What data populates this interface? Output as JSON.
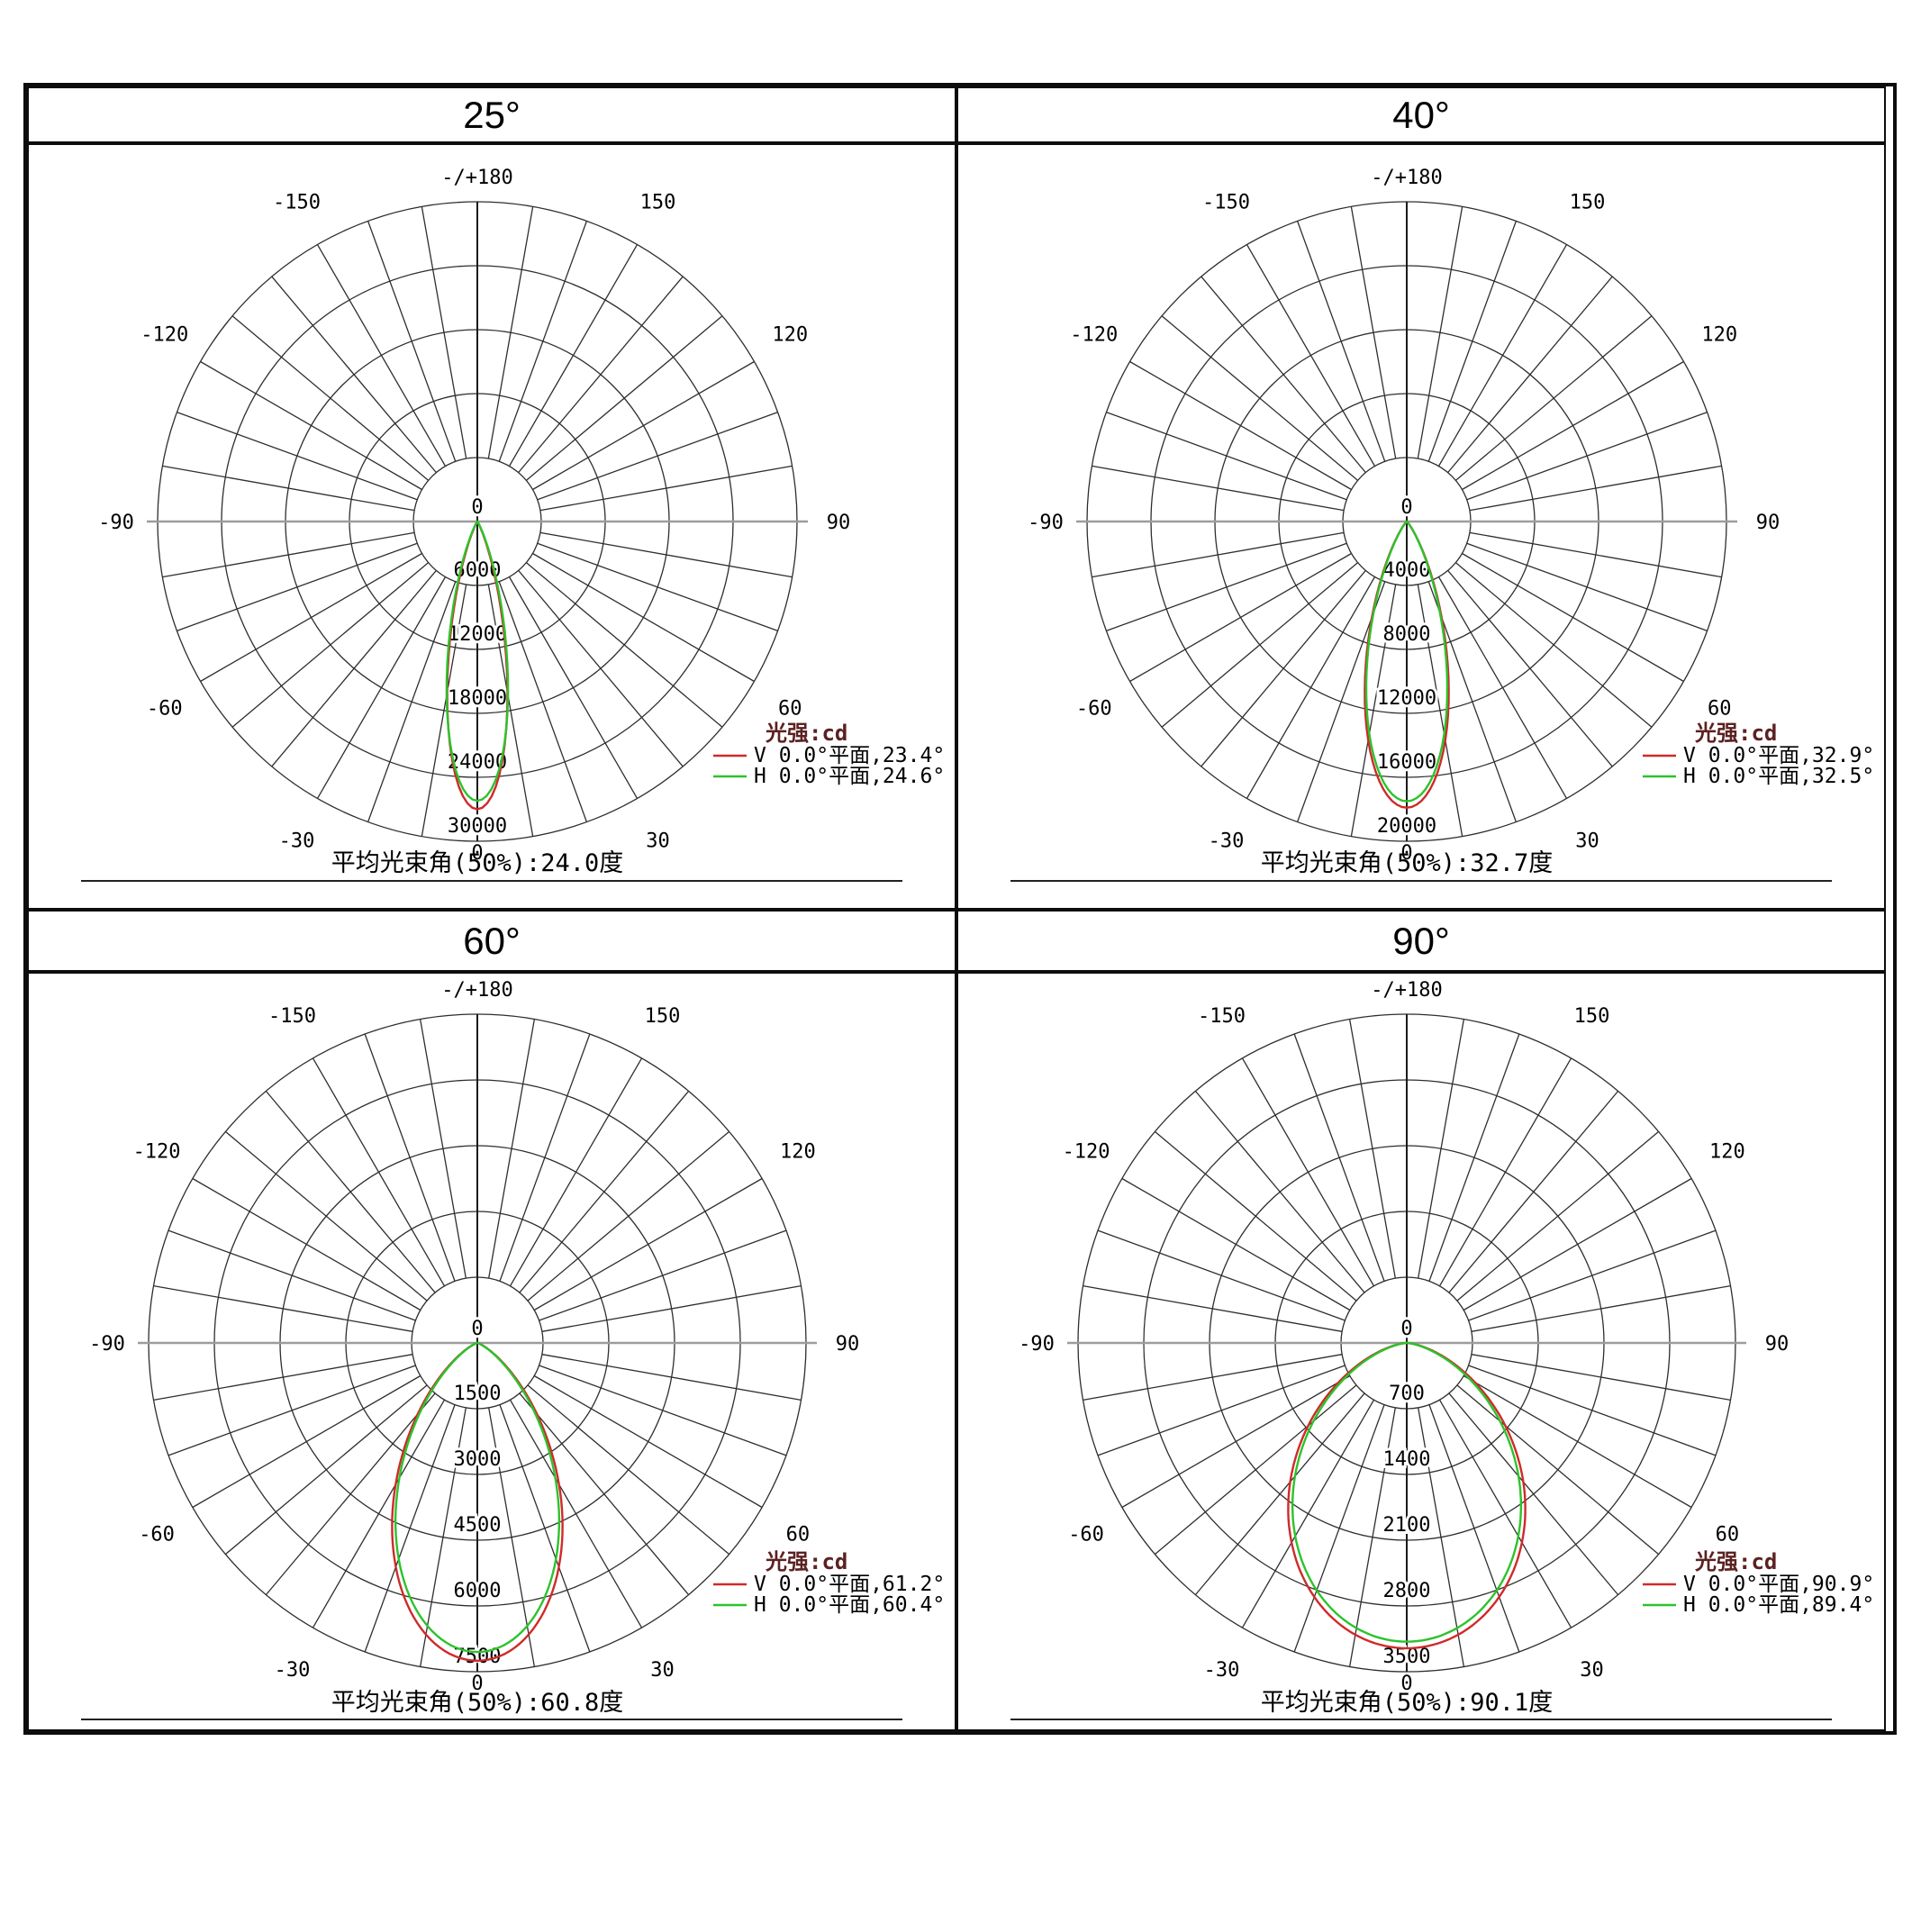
{
  "page_background": "#ffffff",
  "polar_angle_labels": [
    "-/+180",
    "-150",
    "-120",
    "-90",
    "-60",
    "-30",
    "0",
    "30",
    "60",
    "90",
    "120",
    "150"
  ],
  "chart_data": [
    {
      "type": "polar",
      "title": "25°",
      "legend_title": "光强:cd",
      "unit": "cd",
      "orientation": "0 degrees at bottom, intensity radial from center",
      "legend_position": "lower-right",
      "radial_ticks_cd": [
        6000,
        12000,
        18000,
        24000,
        30000
      ],
      "series": [
        {
          "name": "V 0.0°平面,23.4°",
          "plane": "V 0.0°平面",
          "color": "#cf2a2a",
          "beam_angle_50pct_deg": 23.4,
          "peak_cd": 27000
        },
        {
          "name": "H 0.0°平面,24.6°",
          "plane": "H 0.0°平面",
          "color": "#2cc32c",
          "beam_angle_50pct_deg": 24.6,
          "peak_cd": 26200
        }
      ],
      "caption": "平均光束角(50%):24.0度"
    },
    {
      "type": "polar",
      "title": "40°",
      "legend_title": "光强:cd",
      "unit": "cd",
      "orientation": "0 degrees at bottom, intensity radial from center",
      "legend_position": "lower-right",
      "radial_ticks_cd": [
        4000,
        8000,
        12000,
        16000,
        20000
      ],
      "series": [
        {
          "name": "V 0.0°平面,32.9°",
          "plane": "V 0.0°平面",
          "color": "#cf2a2a",
          "beam_angle_50pct_deg": 32.9,
          "peak_cd": 17900
        },
        {
          "name": "H 0.0°平面,32.5°",
          "plane": "H 0.0°平面",
          "color": "#2cc32c",
          "beam_angle_50pct_deg": 32.5,
          "peak_cd": 17500
        }
      ],
      "caption": "平均光束角(50%):32.7度"
    },
    {
      "type": "polar",
      "title": "60°",
      "legend_title": "光强:cd",
      "unit": "cd",
      "orientation": "0 degrees at bottom, intensity radial from center",
      "legend_position": "lower-right",
      "radial_ticks_cd": [
        1500,
        3000,
        4500,
        6000,
        7500
      ],
      "series": [
        {
          "name": "V 0.0°平面,61.2°",
          "plane": "V 0.0°平面",
          "color": "#cf2a2a",
          "beam_angle_50pct_deg": 61.2,
          "peak_cd": 7250
        },
        {
          "name": "H 0.0°平面,60.4°",
          "plane": "H 0.0°平面",
          "color": "#2cc32c",
          "beam_angle_50pct_deg": 60.4,
          "peak_cd": 7050
        }
      ],
      "caption": "平均光束角(50%):60.8度"
    },
    {
      "type": "polar",
      "title": "90°",
      "legend_title": "光强:cd",
      "unit": "cd",
      "orientation": "0 degrees at bottom, intensity radial from center",
      "legend_position": "lower-right",
      "radial_ticks_cd": [
        700,
        1400,
        2100,
        2800,
        3500
      ],
      "series": [
        {
          "name": "V 0.0°平面,90.9°",
          "plane": "V 0.0°平面",
          "color": "#cf2a2a",
          "beam_angle_50pct_deg": 90.9,
          "peak_cd": 3250
        },
        {
          "name": "H 0.0°平面,89.4°",
          "plane": "H 0.0°平面",
          "color": "#2cc32c",
          "beam_angle_50pct_deg": 89.4,
          "peak_cd": 3180
        }
      ],
      "caption": "平均光束角(50%):90.1度"
    }
  ]
}
